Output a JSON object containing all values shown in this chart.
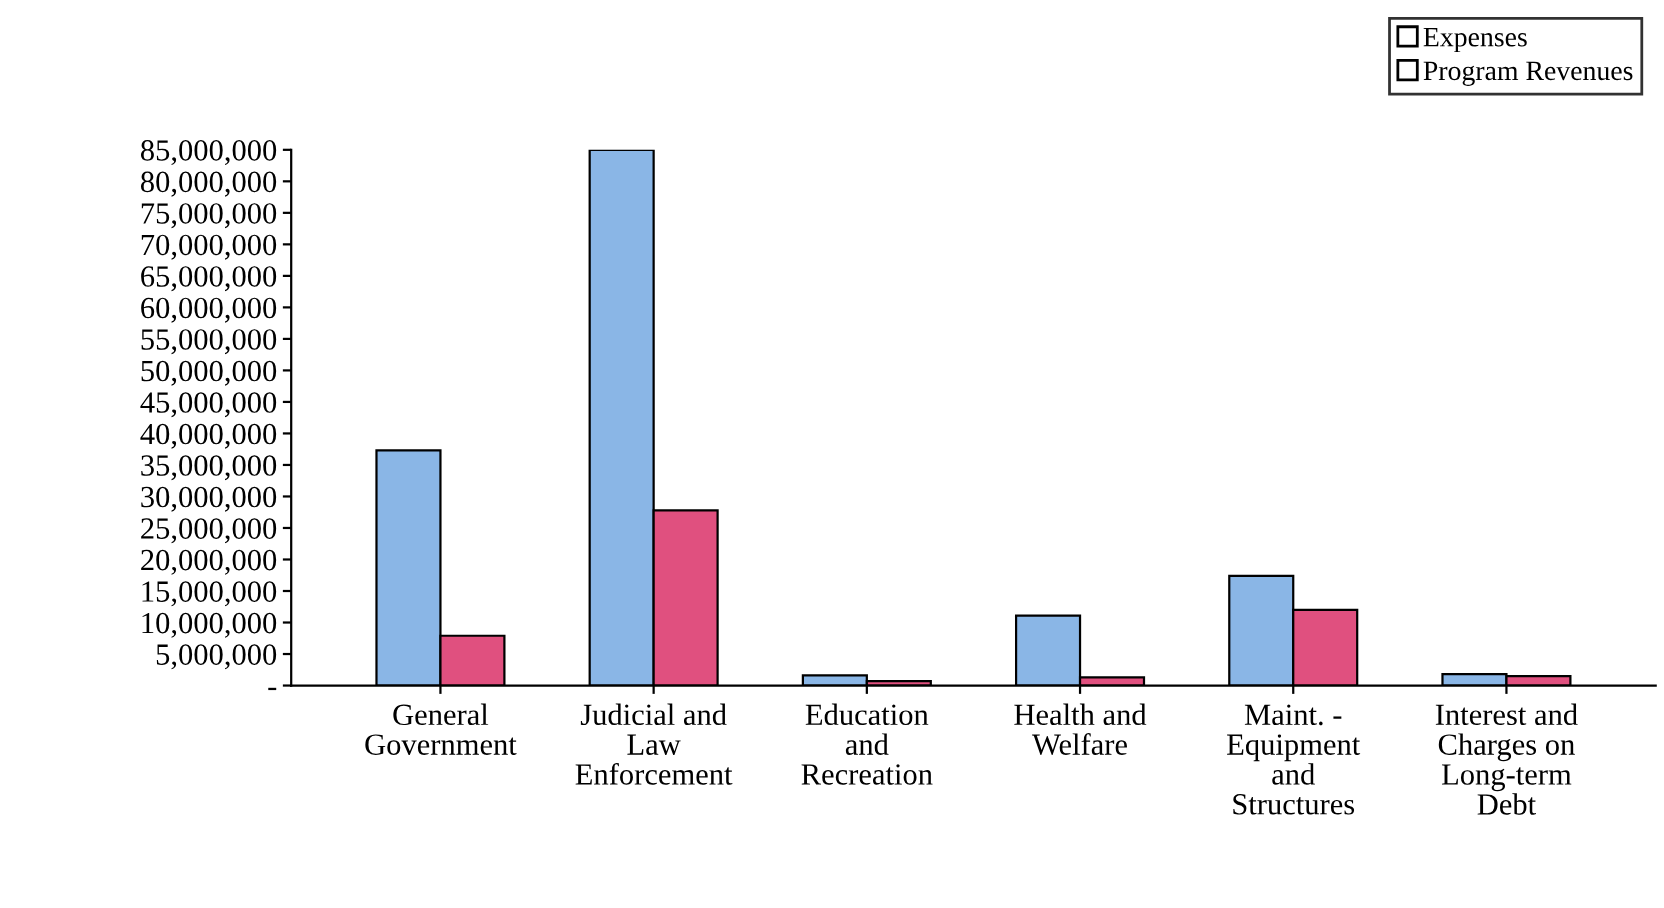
{
  "chart_data": {
    "type": "bar",
    "categories": [
      "General\nGovernment",
      "Judicial and\nLaw\nEnforcement",
      "Education\nand\nRecreation",
      "Health and\nWelfare",
      "Maint. -\nEquipment\nand\nStructures",
      "Interest and\nCharges on\nLong-term\nDebt"
    ],
    "series": [
      {
        "name": "Expenses",
        "color": "#8ab6e6",
        "values": [
          37300000,
          85000000,
          1600000,
          11100000,
          17400000,
          1800000
        ]
      },
      {
        "name": "Program Revenues",
        "color": "#e0507f",
        "values": [
          7900000,
          27800000,
          700000,
          1300000,
          12000000,
          1500000
        ]
      }
    ],
    "ylim": [
      0,
      85000000
    ],
    "yticks": [
      {
        "value": 0,
        "label": "-"
      },
      {
        "value": 5000000,
        "label": "5,000,000"
      },
      {
        "value": 10000000,
        "label": "10,000,000"
      },
      {
        "value": 15000000,
        "label": "15,000,000"
      },
      {
        "value": 20000000,
        "label": "20,000,000"
      },
      {
        "value": 25000000,
        "label": "25,000,000"
      },
      {
        "value": 30000000,
        "label": "30,000,000"
      },
      {
        "value": 35000000,
        "label": "35,000,000"
      },
      {
        "value": 40000000,
        "label": "40,000,000"
      },
      {
        "value": 45000000,
        "label": "45,000,000"
      },
      {
        "value": 50000000,
        "label": "50,000,000"
      },
      {
        "value": 55000000,
        "label": "55,000,000"
      },
      {
        "value": 60000000,
        "label": "60,000,000"
      },
      {
        "value": 65000000,
        "label": "65,000,000"
      },
      {
        "value": 70000000,
        "label": "70,000,000"
      },
      {
        "value": 75000000,
        "label": "75,000,000"
      },
      {
        "value": 80000000,
        "label": "80,000,000"
      },
      {
        "value": 85000000,
        "label": "85,000,000"
      }
    ],
    "grid": false,
    "legend": "top right"
  }
}
